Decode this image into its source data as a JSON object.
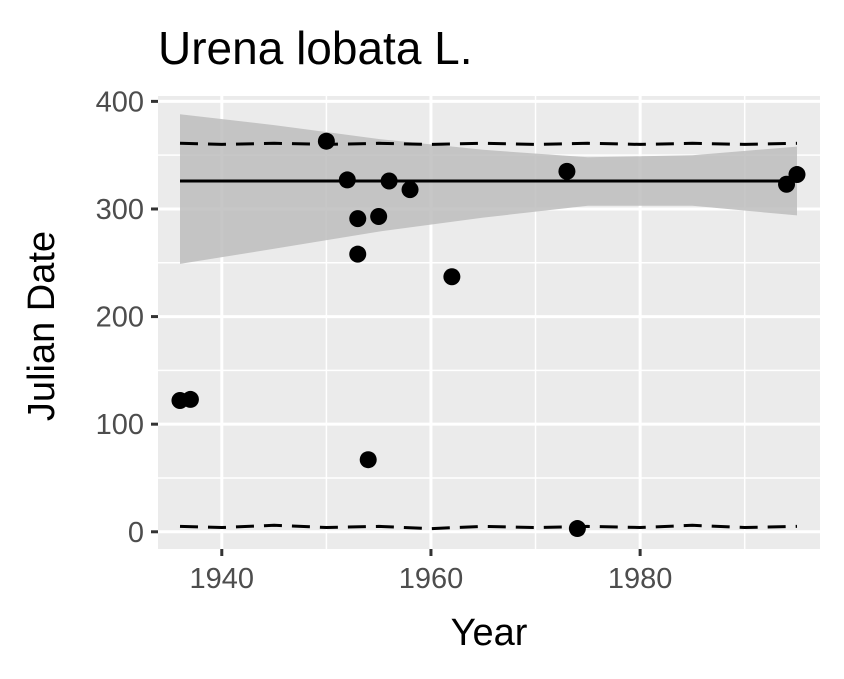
{
  "chart_data": {
    "type": "scatter",
    "title": "Urena lobata L.",
    "xlabel": "Year",
    "ylabel": "Julian Date",
    "xlim": [
      1933.9,
      1997.2
    ],
    "ylim": [
      -16,
      405
    ],
    "x_ticks": [
      1940,
      1960,
      1980
    ],
    "y_ticks": [
      0,
      100,
      200,
      300,
      400
    ],
    "grid": true,
    "legend": "none",
    "colors": {
      "panel": "#ebebeb",
      "grid": "#ffffff",
      "points": "#000000",
      "ribbon": "#bdbdbd",
      "tick_text": "#4d4d4d"
    },
    "points": [
      {
        "x": 1936,
        "y": 122
      },
      {
        "x": 1937,
        "y": 123
      },
      {
        "x": 1950,
        "y": 363
      },
      {
        "x": 1952,
        "y": 327
      },
      {
        "x": 1953,
        "y": 291
      },
      {
        "x": 1953,
        "y": 258
      },
      {
        "x": 1954,
        "y": 67
      },
      {
        "x": 1955,
        "y": 293
      },
      {
        "x": 1956,
        "y": 326
      },
      {
        "x": 1958,
        "y": 318
      },
      {
        "x": 1962,
        "y": 237
      },
      {
        "x": 1973,
        "y": 335
      },
      {
        "x": 1974,
        "y": 3
      },
      {
        "x": 1994,
        "y": 323
      },
      {
        "x": 1995,
        "y": 332
      }
    ],
    "fit_line": {
      "x": [
        1936,
        1995
      ],
      "y": [
        326,
        326
      ]
    },
    "confidence_band": {
      "x": [
        1936,
        1945,
        1955,
        1965,
        1975,
        1985,
        1995
      ],
      "upper": [
        388,
        378,
        365,
        355,
        348,
        350,
        358
      ],
      "lower": [
        249,
        263,
        279,
        292,
        303,
        303,
        294
      ]
    },
    "upper_dashed": {
      "x": [
        1936,
        1940,
        1945,
        1950,
        1955,
        1960,
        1965,
        1970,
        1975,
        1980,
        1985,
        1990,
        1995
      ],
      "y": [
        361,
        360,
        361,
        360,
        361,
        360,
        361,
        360,
        361,
        360,
        361,
        360,
        361
      ]
    },
    "lower_dashed": {
      "x": [
        1936,
        1940,
        1945,
        1950,
        1955,
        1960,
        1965,
        1970,
        1975,
        1980,
        1985,
        1990,
        1995
      ],
      "y": [
        5,
        4,
        6,
        4,
        5,
        3,
        5,
        4,
        5,
        4,
        6,
        4,
        5
      ]
    }
  }
}
